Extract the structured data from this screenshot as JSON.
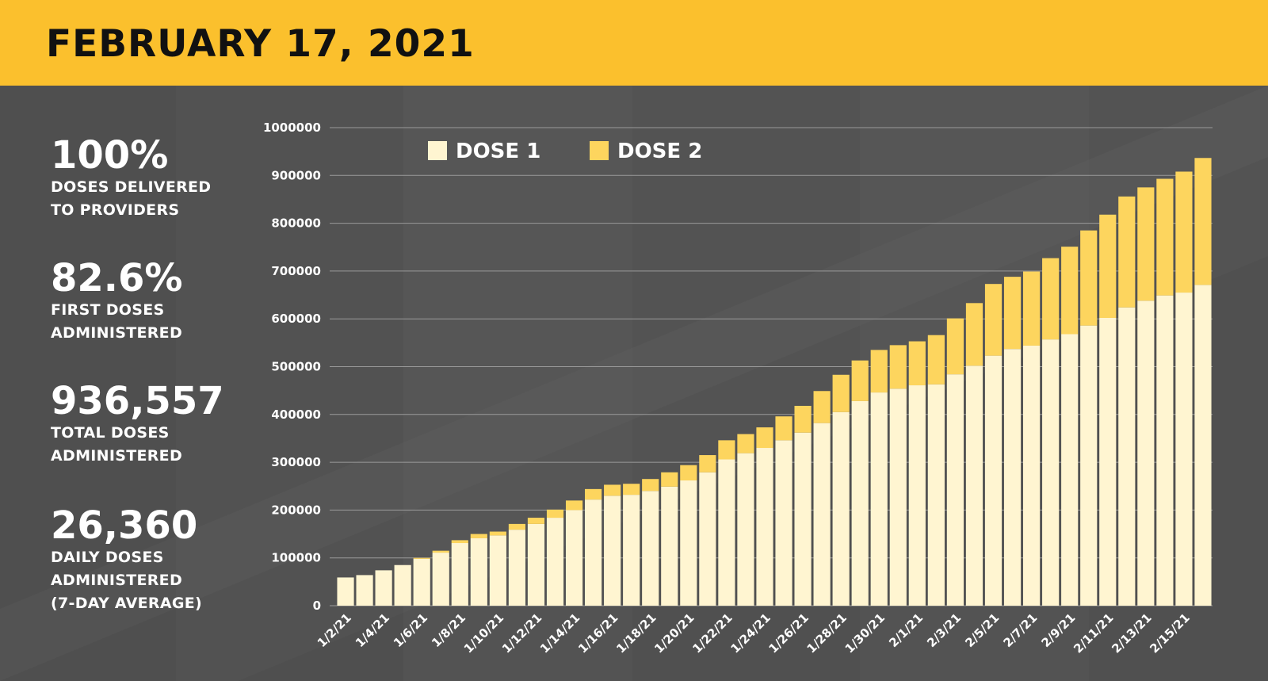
{
  "header": {
    "title": "FEBRUARY 17, 2021"
  },
  "stats": [
    {
      "value": "100%",
      "label_line1": "DOSES DELIVERED",
      "label_line2": "TO PROVIDERS",
      "label_line3": ""
    },
    {
      "value": "82.6%",
      "label_line1": "FIRST DOSES",
      "label_line2": "ADMINISTERED",
      "label_line3": ""
    },
    {
      "value": "936,557",
      "label_line1": "TOTAL DOSES",
      "label_line2": "ADMINISTERED",
      "label_line3": ""
    },
    {
      "value": "26,360",
      "label_line1": "DAILY DOSES",
      "label_line2": "ADMINISTERED",
      "label_line3": "(7-DAY AVERAGE)"
    }
  ],
  "colors": {
    "dose1": "#fff5d1",
    "dose2": "#fdd55e",
    "header_bg": "#fbc02d",
    "grid": "#9a9a9a"
  },
  "chart_data": {
    "type": "bar",
    "stacked": true,
    "title": "",
    "xlabel": "",
    "ylabel": "",
    "ylim": [
      0,
      1000000
    ],
    "yticks": [
      "0",
      "100000",
      "200000",
      "300000",
      "400000",
      "500000",
      "600000",
      "700000",
      "800000",
      "900000",
      "1000000"
    ],
    "legend": {
      "position": "top-left"
    },
    "categories": [
      "1/2/21",
      "1/3/21",
      "1/4/21",
      "1/5/21",
      "1/6/21",
      "1/7/21",
      "1/8/21",
      "1/9/21",
      "1/10/21",
      "1/11/21",
      "1/12/21",
      "1/13/21",
      "1/14/21",
      "1/15/21",
      "1/16/21",
      "1/17/21",
      "1/18/21",
      "1/19/21",
      "1/20/21",
      "1/21/21",
      "1/22/21",
      "1/23/21",
      "1/24/21",
      "1/25/21",
      "1/26/21",
      "1/27/21",
      "1/28/21",
      "1/29/21",
      "1/30/21",
      "1/31/21",
      "2/1/21",
      "2/2/21",
      "2/3/21",
      "2/4/21",
      "2/5/21",
      "2/6/21",
      "2/7/21",
      "2/8/21",
      "2/9/21",
      "2/10/21",
      "2/11/21",
      "2/12/21",
      "2/13/21",
      "2/14/21",
      "2/15/21",
      "2/16/21"
    ],
    "tick_labels": [
      "1/2/21",
      "",
      "1/4/21",
      "",
      "1/6/21",
      "",
      "1/8/21",
      "",
      "1/10/21",
      "",
      "1/12/21",
      "",
      "1/14/21",
      "",
      "1/16/21",
      "",
      "1/18/21",
      "",
      "1/20/21",
      "",
      "1/22/21",
      "",
      "1/24/21",
      "",
      "1/26/21",
      "",
      "1/28/21",
      "",
      "1/30/21",
      "",
      "2/1/21",
      "",
      "2/3/21",
      "",
      "2/5/21",
      "",
      "2/7/21",
      "",
      "2/9/21",
      "",
      "2/11/21",
      "",
      "2/13/21",
      "",
      "2/15/21",
      ""
    ],
    "series": [
      {
        "name": "DOSE 1",
        "values": [
          59000,
          64000,
          74000,
          85000,
          98000,
          111000,
          131000,
          141000,
          147000,
          159000,
          171000,
          184000,
          200000,
          222000,
          230000,
          232000,
          240000,
          249000,
          262000,
          279000,
          306000,
          319000,
          330000,
          346000,
          362000,
          382000,
          405000,
          428000,
          446000,
          454000,
          461000,
          463000,
          484000,
          502000,
          523000,
          537000,
          544000,
          557000,
          568000,
          586000,
          602000,
          624000,
          638000,
          649000,
          655000,
          671000
        ]
      },
      {
        "name": "DOSE 2",
        "values": [
          0,
          0,
          0,
          0,
          2000,
          4000,
          6000,
          9000,
          8000,
          12000,
          13000,
          17000,
          20000,
          22000,
          23000,
          23000,
          25000,
          30000,
          32000,
          36000,
          40000,
          40000,
          43000,
          50000,
          56000,
          67000,
          78000,
          85000,
          89000,
          91000,
          92000,
          103000,
          117000,
          131000,
          150000,
          151000,
          155000,
          170000,
          183000,
          199000,
          216000,
          232000,
          237000,
          244000,
          253000,
          265557
        ]
      }
    ]
  }
}
